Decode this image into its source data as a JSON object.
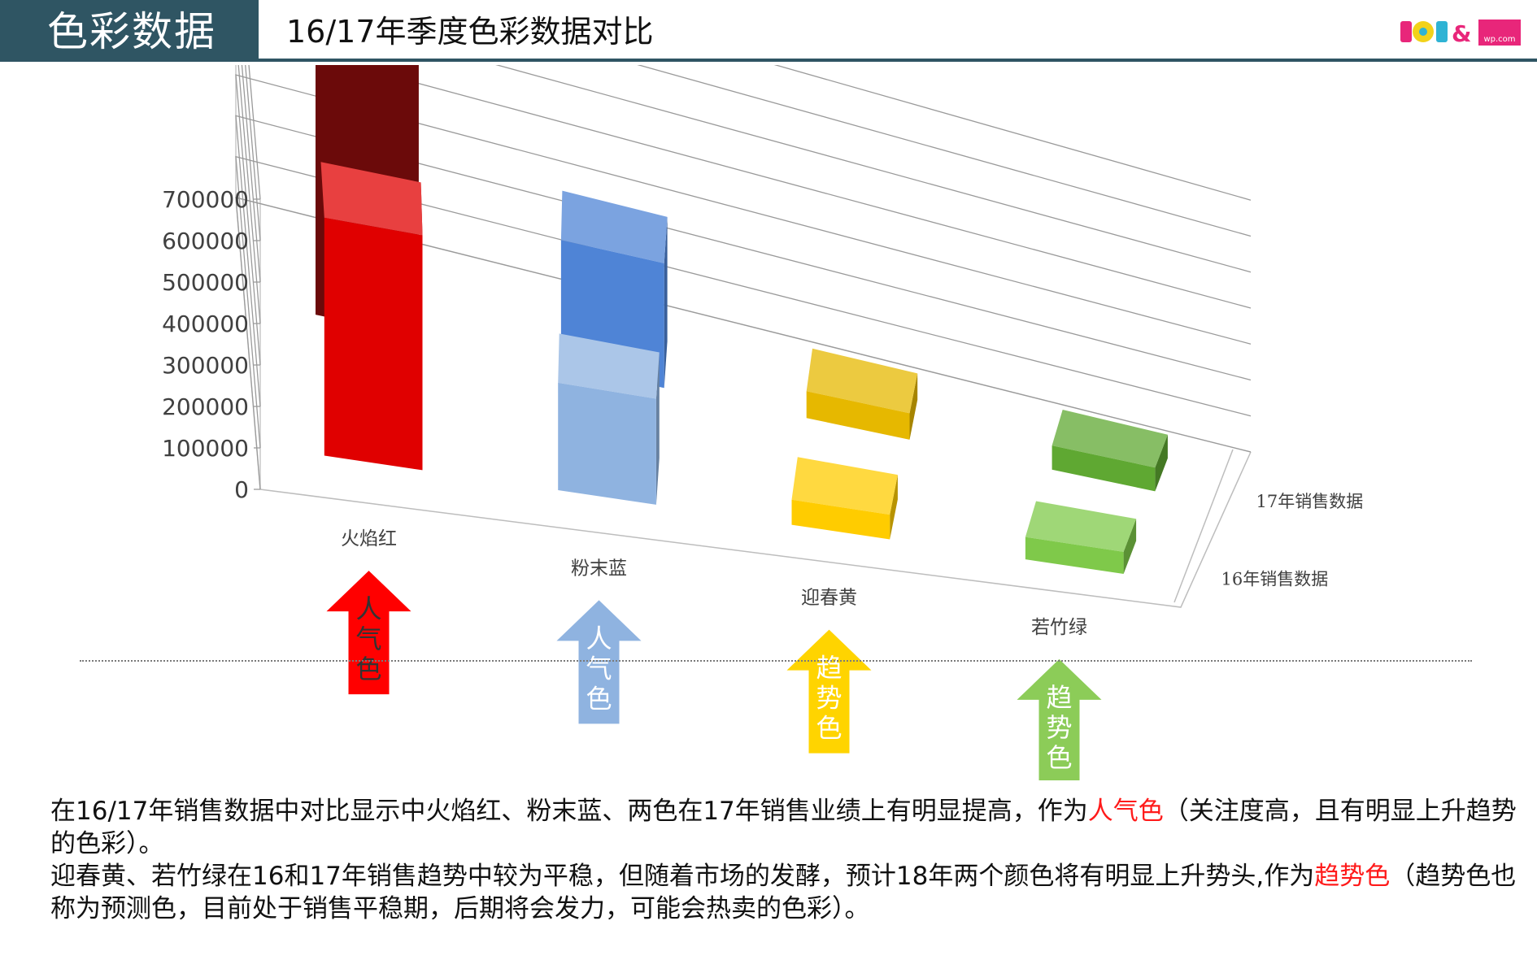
{
  "header": {
    "tab_title": "色彩数据",
    "subtitle": "16/17年季度色彩数据对比",
    "logo_text": "POP&",
    "logo_sub": "wp.com"
  },
  "colors": {
    "header_bg": "#2f5563",
    "highlight": "#ff1a1a"
  },
  "chart_data": {
    "type": "bar",
    "subtype": "3d-clustered-column",
    "categories": [
      "火焰红",
      "粉末蓝",
      "迎春黄",
      "若竹绿"
    ],
    "series": [
      {
        "name": "16年销售数据",
        "values": [
          580000,
          270000,
          65000,
          60000
        ],
        "colors": [
          "#e00000",
          "#8fb3e0",
          "#ffcc00",
          "#7fc94a"
        ]
      },
      {
        "name": "17年销售数据",
        "values": [
          680000,
          320000,
          70000,
          65000
        ],
        "colors": [
          "#6b0a0a",
          "#4f84d6",
          "#e6b800",
          "#5fa832"
        ]
      }
    ],
    "y_ticks": [
      "0",
      "100000",
      "200000",
      "300000",
      "400000",
      "500000",
      "600000",
      "700000"
    ],
    "ylim": [
      0,
      700000
    ],
    "grid": true,
    "legend_position": "right-depth-axis"
  },
  "arrows": [
    {
      "lines": [
        "人",
        "气",
        "色"
      ],
      "color": "#ff0000",
      "text_color": "#333333"
    },
    {
      "lines": [
        "人",
        "气",
        "色"
      ],
      "color": "#8fb3e0",
      "text_color": "#ffffff"
    },
    {
      "lines": [
        "趋",
        "势",
        "色"
      ],
      "color": "#ffd400",
      "text_color": "#ffffff"
    },
    {
      "lines": [
        "趋",
        "势",
        "色"
      ],
      "color": "#8ccc58",
      "text_color": "#ffffff"
    }
  ],
  "description": {
    "line1_pre": "在16/17年销售数据中对比显示中火焰红、粉末蓝、两色在17年销售业绩上有明显提高，作为",
    "line1_hl": "人气色",
    "line1_post": "（关注度高，且有明显上升趋势的色彩）。",
    "line2_pre": "迎春黄、若竹绿在16和17年销售趋势中较为平稳，但随着市场的发酵，预计18年两个颜色将有明显上升势头,作为",
    "line2_hl": "趋势色",
    "line2_post": "（趋势色也称为预测色，目前处于销售平稳期，后期将会发力，可能会热卖的色彩）。"
  }
}
